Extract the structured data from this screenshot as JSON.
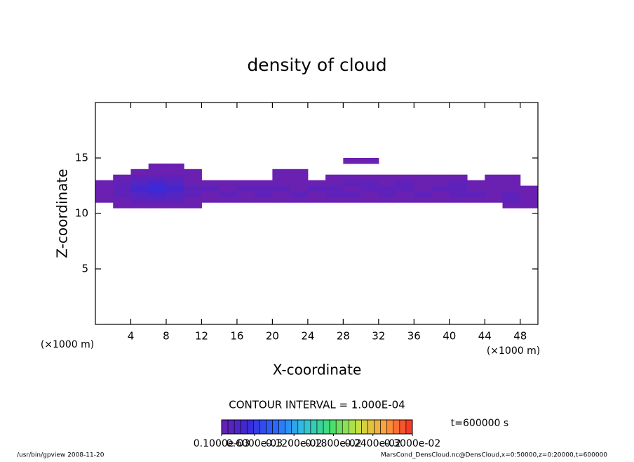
{
  "chart_data": {
    "type": "heatmap",
    "title": "density of cloud",
    "x_label": "X-coordinate",
    "y_label": "Z-coordinate",
    "x_unit_left": "(×1000 m)",
    "x_unit_right": "(×1000 m)",
    "contour_interval": "CONTOUR INTERVAL = 1.000E-04",
    "time_label": "t=600000 s",
    "footer_left": "/usr/bin/gpview   2008-11-20",
    "footer_right": "MarsCond_DensCloud.nc@DensCloud,x=0:50000,z=0:20000,t=600000",
    "xlim": [
      0,
      50
    ],
    "ylim": [
      0,
      20
    ],
    "xticks": [
      4,
      8,
      12,
      16,
      20,
      24,
      28,
      32,
      36,
      40,
      44,
      48
    ],
    "yticks": [
      5,
      10,
      15
    ],
    "x": [
      1,
      3,
      5,
      7,
      9,
      11,
      13,
      15,
      17,
      19,
      21,
      23,
      25,
      27,
      29,
      31,
      33,
      35,
      37,
      39,
      41,
      43,
      45,
      47,
      49
    ],
    "z": [
      10.75,
      11.25,
      11.75,
      12.25,
      12.75,
      13.25,
      13.75,
      14.25,
      14.75
    ],
    "values": [
      [
        null,
        0.0001,
        0.0001,
        0.0001,
        0.0001,
        0.0001,
        null,
        null,
        null,
        null,
        null,
        null,
        null,
        null,
        null,
        null,
        null,
        null,
        null,
        null,
        null,
        null,
        null,
        0.0001,
        0.0001
      ],
      [
        0.0001,
        0.0001,
        0.0002,
        0.0002,
        0.0002,
        0.0001,
        0.0001,
        0.0001,
        0.0001,
        0.0001,
        0.0001,
        0.0001,
        0.0001,
        0.0001,
        0.0001,
        0.0001,
        0.0001,
        0.0001,
        0.0001,
        0.0001,
        0.0001,
        0.0001,
        0.0001,
        0.0002,
        0.0001
      ],
      [
        0.0001,
        0.0002,
        0.0003,
        0.0004,
        0.0003,
        0.0002,
        0.0001,
        0.0002,
        0.0001,
        0.0002,
        0.0001,
        0.0002,
        0.0001,
        0.0002,
        0.0002,
        0.0001,
        0.0002,
        0.0001,
        0.0002,
        0.0001,
        0.0002,
        0.0002,
        0.0001,
        0.0002,
        0.0001
      ],
      [
        0.0001,
        0.0002,
        0.0004,
        0.0005,
        0.0004,
        0.0002,
        0.0002,
        0.0001,
        0.0002,
        0.0002,
        0.0002,
        0.0001,
        0.0002,
        0.0002,
        0.0001,
        0.0002,
        0.0002,
        0.0002,
        0.0001,
        0.0002,
        0.0002,
        0.0001,
        0.0001,
        0.0001,
        0.0001
      ],
      [
        0.0001,
        0.0002,
        0.0003,
        0.0004,
        0.0003,
        0.0001,
        0.0001,
        0.0001,
        0.0001,
        0.0001,
        0.0001,
        0.0001,
        0.0001,
        0.0001,
        0.0002,
        0.0002,
        0.0001,
        0.0002,
        0.0001,
        0.0001,
        0.0002,
        0.0001,
        0.0001,
        0.0001,
        null
      ],
      [
        null,
        0.0001,
        0.0002,
        0.0002,
        0.0002,
        0.0001,
        null,
        null,
        null,
        null,
        0.0001,
        0.0001,
        null,
        0.0001,
        0.0001,
        0.0001,
        0.0001,
        0.0001,
        0.0001,
        0.0001,
        0.0001,
        null,
        0.0001,
        0.0001,
        null
      ],
      [
        null,
        null,
        0.0001,
        0.0001,
        0.0001,
        0.0001,
        null,
        null,
        null,
        null,
        0.0001,
        0.0001,
        null,
        null,
        null,
        null,
        null,
        null,
        null,
        null,
        null,
        null,
        null,
        null,
        null
      ],
      [
        null,
        null,
        null,
        0.0001,
        0.0001,
        null,
        null,
        null,
        null,
        null,
        null,
        null,
        null,
        null,
        null,
        null,
        null,
        null,
        null,
        null,
        null,
        null,
        null,
        null,
        null
      ],
      [
        null,
        null,
        null,
        null,
        null,
        null,
        null,
        null,
        null,
        null,
        null,
        null,
        null,
        null,
        0.0001,
        0.0001,
        null,
        null,
        null,
        null,
        null,
        null,
        null,
        null,
        null
      ]
    ],
    "clim": [
      0.0001,
      0.003
    ],
    "colormap": [
      "#6a20b0",
      "#3a2ad8",
      "#2a6aff",
      "#30c0e0",
      "#40e070",
      "#c8e040",
      "#ffa040",
      "#f03020"
    ],
    "colorbar_ticks": [
      {
        "value": 0.0001,
        "label": "0.1000e-03"
      },
      {
        "value": 0.0006,
        "label": "0.6000e-03"
      },
      {
        "value": 0.0012,
        "label": "0.1200e-02"
      },
      {
        "value": 0.0018,
        "label": "0.1800e-02"
      },
      {
        "value": 0.0024,
        "label": "0.2400e-02"
      },
      {
        "value": 0.003,
        "label": "0.3000e-02"
      }
    ]
  }
}
